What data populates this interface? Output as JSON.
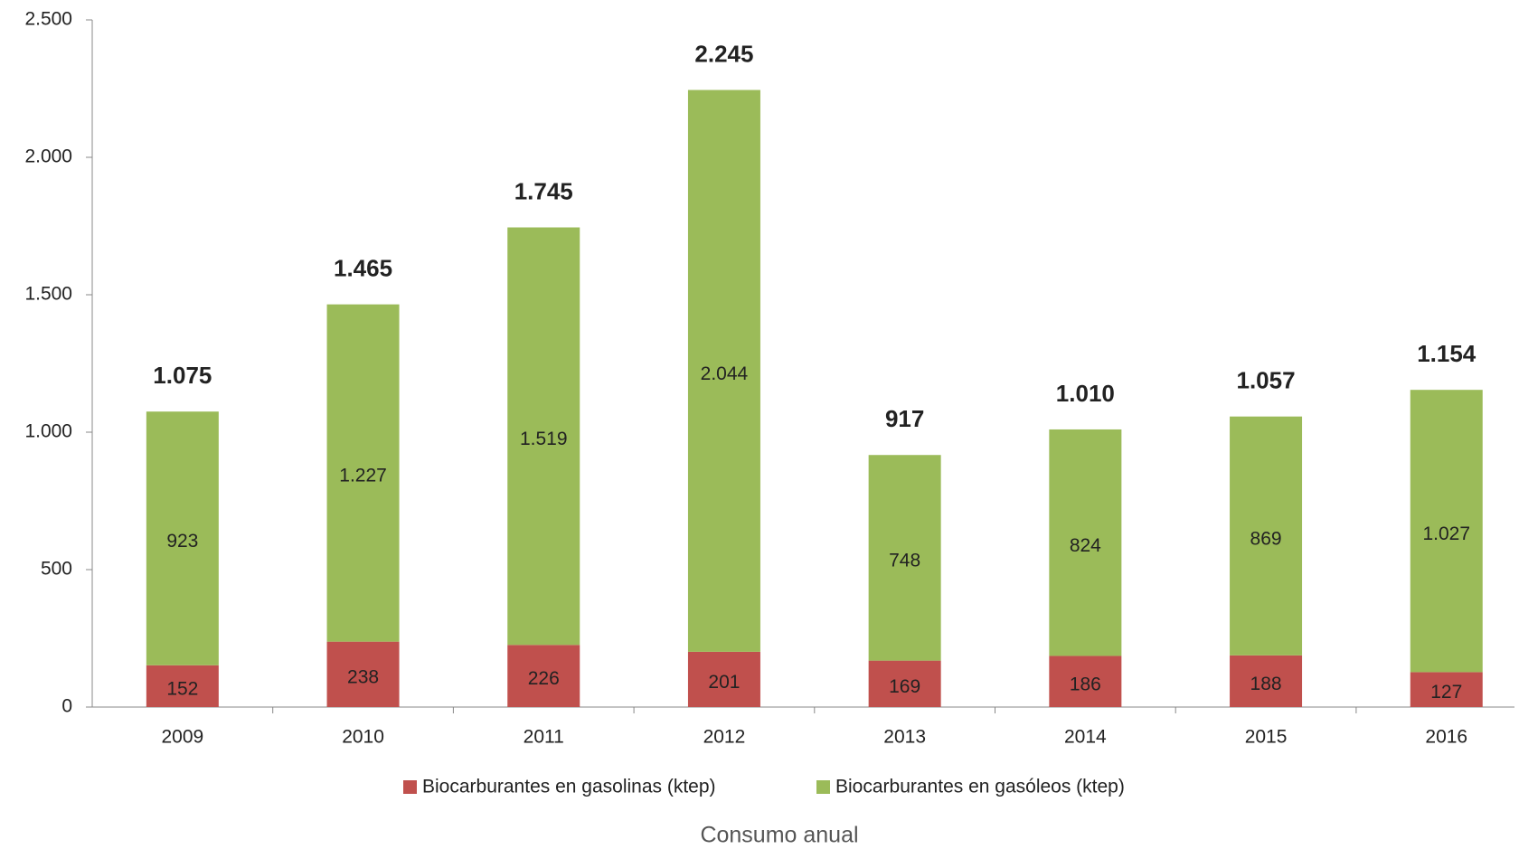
{
  "chart_data": {
    "type": "stacked_bar",
    "title": "Consumo anual",
    "categories": [
      "2009",
      "2010",
      "2011",
      "2012",
      "2013",
      "2014",
      "2015",
      "2016"
    ],
    "series": [
      {
        "name": "Biocarburantes en gasolinas (ktep)",
        "color": "#c0504d",
        "values": [
          152,
          238,
          226,
          201,
          169,
          186,
          188,
          127
        ],
        "value_labels": [
          "152",
          "238",
          "226",
          "201",
          "169",
          "186",
          "188",
          "127"
        ]
      },
      {
        "name": "Biocarburantes en gasóleos (ktep)",
        "color": "#9bbb59",
        "values": [
          923,
          1227,
          1519,
          2044,
          748,
          824,
          869,
          1027
        ],
        "value_labels": [
          "923",
          "1.227",
          "1.519",
          "2.044",
          "748",
          "824",
          "869",
          "1.027"
        ]
      }
    ],
    "totals": {
      "values": [
        1075,
        1465,
        1745,
        2245,
        917,
        1010,
        1057,
        1154
      ],
      "value_labels": [
        "1.075",
        "1.465",
        "1.745",
        "2.245",
        "917",
        "1.010",
        "1.057",
        "1.154"
      ]
    },
    "ylim": [
      0,
      2500
    ],
    "yticks": [
      0,
      500,
      {
        "value": 1000,
        "label": "1.000"
      },
      {
        "value": 1500,
        "label": "1.500"
      },
      {
        "value": 2000,
        "label": "2.000"
      },
      {
        "value": 2500,
        "label": "2.500"
      }
    ],
    "legend": "bottom"
  }
}
